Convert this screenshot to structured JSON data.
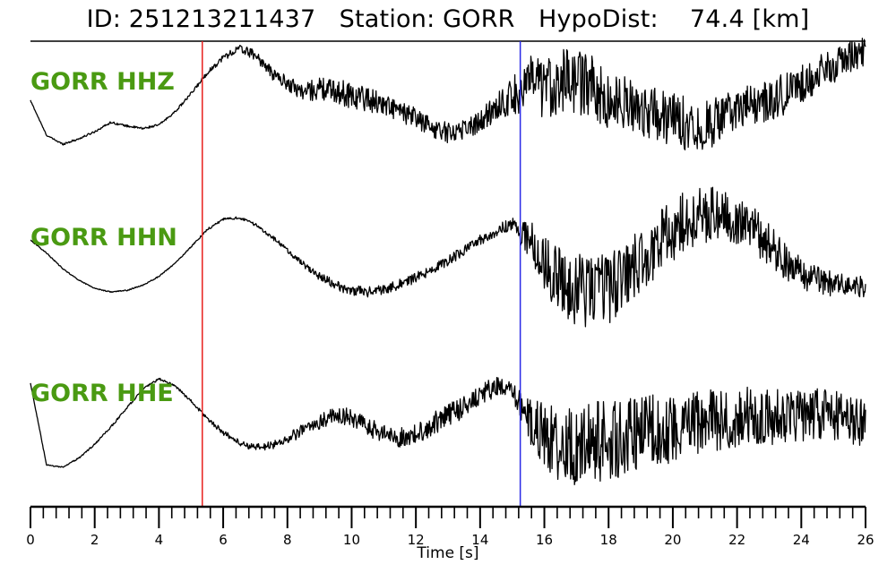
{
  "chart_data": {
    "type": "line",
    "title": "ID: 251213211437   Station: GORR   HypoDist:    74.4 [km]",
    "xlabel": "Time [s]",
    "xlim": [
      0,
      26
    ],
    "x_ticks": [
      "0",
      "2",
      "4",
      "6",
      "8",
      "10",
      "12",
      "14",
      "16",
      "18",
      "20",
      "22",
      "24",
      "26"
    ],
    "minor_tick_step": 0.4,
    "grid": false,
    "picks": [
      {
        "phase": "P",
        "time": 5.35,
        "color": "#e8201e"
      },
      {
        "phase": "S",
        "time": 15.25,
        "color": "#2a2ae6"
      }
    ],
    "label_color": "#4a9a12",
    "trace_color": "#000000",
    "series": [
      {
        "name": "GORR HHZ",
        "x": [
          0,
          0.5,
          1,
          1.5,
          2,
          2.5,
          3,
          3.5,
          4,
          4.5,
          5,
          5.5,
          6,
          6.5,
          7,
          7.5,
          8,
          8.5,
          9,
          9.5,
          10,
          10.5,
          11,
          11.5,
          12,
          12.5,
          13,
          13.5,
          14,
          14.5,
          15,
          15.5,
          16,
          16.5,
          17,
          17.5,
          18,
          18.5,
          19,
          19.5,
          20,
          20.5,
          21,
          21.5,
          22,
          22.5,
          23,
          23.5,
          24,
          24.5,
          25,
          25.5,
          26
        ],
        "values": [
          0.22,
          -0.45,
          -0.62,
          -0.52,
          -0.38,
          -0.2,
          -0.27,
          -0.32,
          -0.25,
          0.0,
          0.35,
          0.75,
          1.05,
          1.22,
          1.1,
          0.75,
          0.55,
          0.38,
          0.45,
          0.4,
          0.32,
          0.25,
          0.15,
          0.0,
          -0.12,
          -0.3,
          -0.4,
          -0.32,
          -0.2,
          0.1,
          0.3,
          0.55,
          0.42,
          0.62,
          0.58,
          0.48,
          0.15,
          0.2,
          0.05,
          -0.05,
          -0.15,
          -0.2,
          -0.28,
          -0.1,
          0.05,
          0.12,
          0.22,
          0.35,
          0.55,
          0.72,
          0.88,
          1.05,
          1.2
        ],
        "noise": [
          0.01,
          0.01,
          0.02,
          0.02,
          0.02,
          0.02,
          0.02,
          0.02,
          0.02,
          0.02,
          0.03,
          0.04,
          0.06,
          0.08,
          0.1,
          0.12,
          0.14,
          0.18,
          0.22,
          0.24,
          0.26,
          0.24,
          0.22,
          0.2,
          0.2,
          0.2,
          0.2,
          0.2,
          0.22,
          0.28,
          0.35,
          0.55,
          0.6,
          0.62,
          0.62,
          0.6,
          0.55,
          0.52,
          0.5,
          0.5,
          0.52,
          0.55,
          0.5,
          0.45,
          0.42,
          0.4,
          0.4,
          0.4,
          0.38,
          0.36,
          0.34,
          0.32,
          0.3
        ]
      },
      {
        "name": "GORR HHN",
        "x": [
          0,
          0.5,
          1,
          1.5,
          2,
          2.5,
          3,
          3.5,
          4,
          4.5,
          5,
          5.5,
          6,
          6.5,
          7,
          7.5,
          8,
          8.5,
          9,
          9.5,
          10,
          10.5,
          11,
          11.5,
          12,
          12.5,
          13,
          13.5,
          14,
          14.5,
          15,
          15.5,
          16,
          16.5,
          17,
          17.5,
          18,
          18.5,
          19,
          19.5,
          20,
          20.5,
          21,
          21.5,
          22,
          22.5,
          23,
          23.5,
          24,
          24.5,
          25,
          25.5,
          26
        ],
        "values": [
          0.55,
          0.3,
          0.0,
          -0.22,
          -0.38,
          -0.45,
          -0.42,
          -0.32,
          -0.15,
          0.1,
          0.42,
          0.75,
          0.95,
          0.98,
          0.85,
          0.62,
          0.35,
          0.08,
          -0.15,
          -0.32,
          -0.42,
          -0.45,
          -0.4,
          -0.3,
          -0.18,
          -0.02,
          0.15,
          0.35,
          0.55,
          0.72,
          0.85,
          0.6,
          0.1,
          -0.25,
          -0.4,
          -0.45,
          -0.35,
          -0.15,
          0.15,
          0.45,
          0.75,
          0.95,
          1.05,
          1.05,
          0.95,
          0.75,
          0.45,
          0.15,
          -0.1,
          -0.22,
          -0.3,
          -0.33,
          -0.35
        ],
        "noise": [
          0.01,
          0.01,
          0.01,
          0.01,
          0.01,
          0.01,
          0.01,
          0.01,
          0.01,
          0.01,
          0.015,
          0.02,
          0.02,
          0.025,
          0.03,
          0.04,
          0.05,
          0.06,
          0.08,
          0.09,
          0.1,
          0.1,
          0.1,
          0.1,
          0.1,
          0.1,
          0.1,
          0.1,
          0.1,
          0.12,
          0.14,
          0.4,
          0.55,
          0.65,
          0.7,
          0.72,
          0.72,
          0.68,
          0.62,
          0.6,
          0.6,
          0.58,
          0.56,
          0.52,
          0.48,
          0.44,
          0.4,
          0.36,
          0.3,
          0.26,
          0.24,
          0.22,
          0.2
        ]
      },
      {
        "name": "GORR HHE",
        "x": [
          0,
          0.5,
          1,
          1.5,
          2,
          2.5,
          3,
          3.5,
          4,
          4.5,
          5,
          5.5,
          6,
          6.5,
          7,
          7.5,
          8,
          8.5,
          9,
          9.5,
          10,
          10.5,
          11,
          11.5,
          12,
          12.5,
          13,
          13.5,
          14,
          14.5,
          15,
          15.5,
          16,
          16.5,
          17,
          17.5,
          18,
          18.5,
          19,
          19.5,
          20,
          20.5,
          21,
          21.5,
          22,
          22.5,
          23,
          23.5,
          24,
          24.5,
          25,
          25.5,
          26
        ],
        "values": [
          0.9,
          -0.68,
          -0.72,
          -0.55,
          -0.28,
          0.05,
          0.42,
          0.78,
          0.98,
          0.85,
          0.55,
          0.22,
          -0.05,
          -0.25,
          -0.35,
          -0.3,
          -0.18,
          0.0,
          0.15,
          0.3,
          0.22,
          0.05,
          -0.08,
          -0.15,
          -0.1,
          0.1,
          0.28,
          0.45,
          0.68,
          0.82,
          0.72,
          0.22,
          -0.1,
          -0.3,
          -0.35,
          -0.25,
          -0.2,
          -0.15,
          -0.1,
          0.0,
          0.05,
          0.1,
          0.15,
          0.2,
          0.22,
          0.25,
          0.25,
          0.28,
          0.3,
          0.3,
          0.25,
          0.2,
          0.15
        ],
        "noise": [
          0.01,
          0.01,
          0.01,
          0.015,
          0.015,
          0.02,
          0.02,
          0.02,
          0.02,
          0.02,
          0.03,
          0.04,
          0.05,
          0.06,
          0.07,
          0.08,
          0.1,
          0.12,
          0.14,
          0.16,
          0.18,
          0.18,
          0.18,
          0.2,
          0.2,
          0.22,
          0.22,
          0.22,
          0.22,
          0.2,
          0.2,
          0.42,
          0.62,
          0.72,
          0.75,
          0.78,
          0.78,
          0.75,
          0.72,
          0.7,
          0.68,
          0.65,
          0.62,
          0.6,
          0.6,
          0.58,
          0.56,
          0.54,
          0.52,
          0.5,
          0.5,
          0.48,
          0.46
        ]
      }
    ]
  }
}
